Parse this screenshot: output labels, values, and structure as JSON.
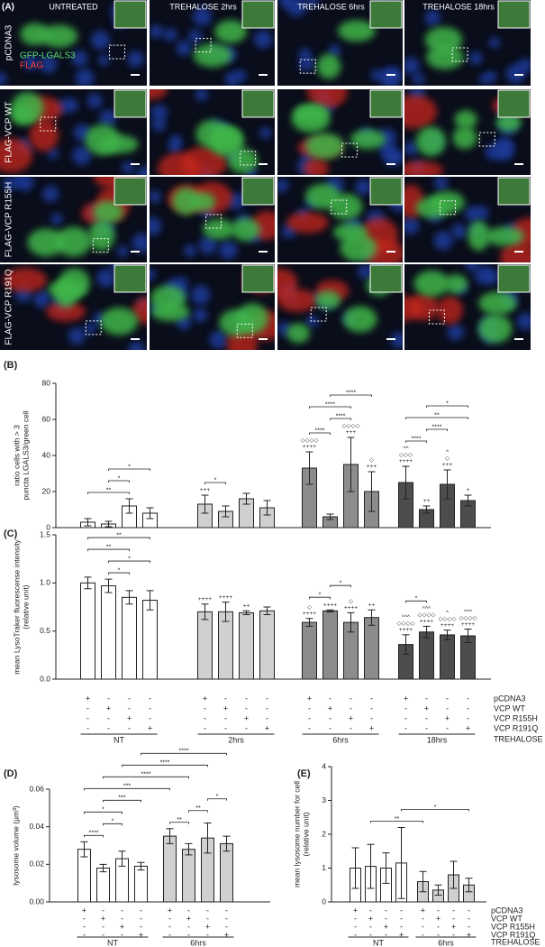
{
  "panel_a": {
    "label": "(A)",
    "columns": [
      "UNTREATED",
      "TREHALOSE 2hrs",
      "TREHALOSE 6hrs",
      "TREHALOSE 18hrs"
    ],
    "rows": [
      "pCDNA3",
      "FLAG-VCP WT",
      "FLAG-VCP R155H",
      "FLAG-VCP R191Q"
    ],
    "stain_labels": [
      "GFP-LGALS3",
      "FLAG"
    ]
  },
  "chart_data": [
    {
      "type": "bar",
      "panel": "(B)",
      "ylabel": [
        "ratio cells with > 3",
        "puncta LGALS3/green cell"
      ],
      "ylim": [
        0,
        80
      ],
      "yticks": [
        0,
        20,
        40,
        60,
        80
      ],
      "group_colors": [
        "#ffffff",
        "#d0d0d0",
        "#8c8c8c",
        "#4d4d4d"
      ],
      "series": [
        {
          "values": [
            3,
            13,
            33,
            25
          ],
          "errors": [
            2,
            5,
            9,
            9
          ]
        },
        {
          "values": [
            2,
            9,
            6,
            10
          ],
          "errors": [
            1.5,
            3,
            1.5,
            2
          ]
        },
        {
          "values": [
            12,
            16,
            35,
            24
          ],
          "errors": [
            4,
            3,
            15,
            8
          ]
        },
        {
          "values": [
            8,
            11,
            20,
            15
          ],
          "errors": [
            3,
            4,
            11,
            3
          ]
        }
      ],
      "annotations": [
        {
          "bar": 4,
          "lines": [
            "+++"
          ]
        },
        {
          "bar": 8,
          "lines": [
            "◇◇◇◇",
            "++++"
          ]
        },
        {
          "bar": 10,
          "lines": [
            "◇◇◇◇",
            "+++"
          ]
        },
        {
          "bar": 11,
          "lines": [
            "◇",
            "+++"
          ]
        },
        {
          "bar": 12,
          "lines": [
            "^^",
            "◇◇◇",
            "++++"
          ]
        },
        {
          "bar": 13,
          "lines": [
            "++"
          ]
        },
        {
          "bar": 14,
          "lines": [
            "^",
            "◇",
            "+++"
          ]
        },
        {
          "bar": 15,
          "lines": [
            "+"
          ]
        }
      ],
      "brackets": [
        {
          "bars": [
            0,
            2
          ],
          "label": "**"
        },
        {
          "bars": [
            1,
            2
          ],
          "label": "*"
        },
        {
          "bars": [
            1,
            3
          ],
          "label": "*"
        },
        {
          "bars": [
            4,
            5
          ],
          "label": "*"
        },
        {
          "bars": [
            8,
            9
          ],
          "label": "****"
        },
        {
          "bars": [
            9,
            10
          ],
          "label": "****"
        },
        {
          "bars": [
            8,
            10
          ],
          "label": "****"
        },
        {
          "bars": [
            9,
            11
          ],
          "label": "****"
        },
        {
          "bars": [
            12,
            13
          ],
          "label": "****"
        },
        {
          "bars": [
            13,
            14
          ],
          "label": "****"
        },
        {
          "bars": [
            12,
            15
          ],
          "label": "**"
        },
        {
          "bars": [
            13,
            15
          ],
          "label": "*"
        }
      ]
    },
    {
      "type": "bar",
      "panel": "(C)",
      "ylabel": [
        "mean LysoTraker fluorescense intensity",
        "(relative unit)"
      ],
      "ylim": [
        0,
        1.5
      ],
      "yticks": [
        {
          "value": 0,
          "label": "0.0"
        },
        0.5,
        {
          "value": 1,
          "label": "1.0"
        },
        1.5
      ],
      "group_colors": [
        "#ffffff",
        "#d0d0d0",
        "#8c8c8c",
        "#4d4d4d"
      ],
      "categories": [
        "NT",
        "2hrs",
        "6hrs",
        "18hrs"
      ],
      "series": [
        {
          "name": "pCDNA3",
          "values": [
            1.0,
            0.7,
            0.59,
            0.36
          ],
          "errors": [
            0.06,
            0.08,
            0.04,
            0.1
          ]
        },
        {
          "name": "VCP WT",
          "values": [
            0.97,
            0.7,
            0.71,
            0.49
          ],
          "errors": [
            0.07,
            0.1,
            0.01,
            0.06
          ]
        },
        {
          "name": "VCP R155H",
          "values": [
            0.85,
            0.69,
            0.59,
            0.46
          ],
          "errors": [
            0.07,
            0.02,
            0.1,
            0.05
          ]
        },
        {
          "name": "VCP R191Q",
          "values": [
            0.82,
            0.71,
            0.64,
            0.45
          ],
          "errors": [
            0.1,
            0.04,
            0.08,
            0.07
          ]
        }
      ],
      "annotations": [
        {
          "bar": 4,
          "lines": [
            "++++"
          ]
        },
        {
          "bar": 5,
          "lines": [
            "++++"
          ]
        },
        {
          "bar": 6,
          "lines": [
            "++"
          ]
        },
        {
          "bar": 8,
          "lines": [
            "◇",
            "++++"
          ]
        },
        {
          "bar": 9,
          "lines": [
            "++++"
          ]
        },
        {
          "bar": 10,
          "lines": [
            "◇",
            "++++"
          ]
        },
        {
          "bar": 11,
          "lines": [
            "++"
          ]
        },
        {
          "bar": 12,
          "lines": [
            "^^^",
            "◇◇◇◇",
            "++++"
          ]
        },
        {
          "bar": 13,
          "lines": [
            "^^^",
            "◇◇◇◇",
            "++++"
          ]
        },
        {
          "bar": 14,
          "lines": [
            "^",
            "◇◇◇◇",
            "++++"
          ]
        },
        {
          "bar": 15,
          "lines": [
            "^^^",
            "◇◇◇◇",
            "++++"
          ]
        }
      ],
      "brackets": [
        {
          "bars": [
            1,
            2
          ],
          "label": "*"
        },
        {
          "bars": [
            1,
            3
          ],
          "label": "*"
        },
        {
          "bars": [
            0,
            2
          ],
          "label": "**"
        },
        {
          "bars": [
            0,
            3
          ],
          "label": "**"
        },
        {
          "bars": [
            8,
            9
          ],
          "label": "*"
        },
        {
          "bars": [
            9,
            10
          ],
          "label": "*"
        },
        {
          "bars": [
            12,
            13
          ],
          "label": "*"
        }
      ],
      "matrix": {
        "plus": "+",
        "minus": "-",
        "treatment_label": "TREHALOSE"
      }
    },
    {
      "type": "bar",
      "panel": "(D)",
      "ylabel": [
        "lysosome volume (µm³)"
      ],
      "ylim": [
        0,
        0.06
      ],
      "yticks": [
        {
          "value": 0,
          "label": "0.00"
        },
        0.02,
        0.04,
        0.06
      ],
      "group_colors": [
        "#ffffff",
        "#d0d0d0"
      ],
      "categories": [
        "NT",
        "6hrs"
      ],
      "series": [
        {
          "values": [
            0.028,
            0.035
          ],
          "errors": [
            0.004,
            0.004
          ]
        },
        {
          "values": [
            0.018,
            0.028
          ],
          "errors": [
            0.002,
            0.003
          ]
        },
        {
          "values": [
            0.023,
            0.034
          ],
          "errors": [
            0.004,
            0.008
          ]
        },
        {
          "values": [
            0.019,
            0.031
          ],
          "errors": [
            0.002,
            0.004
          ]
        }
      ],
      "brackets": [
        {
          "bars": [
            0,
            1
          ],
          "label": "****"
        },
        {
          "bars": [
            1,
            2
          ],
          "label": "*"
        },
        {
          "bars": [
            4,
            5
          ],
          "label": "**"
        },
        {
          "bars": [
            5,
            6
          ],
          "label": "**"
        },
        {
          "bars": [
            6,
            7
          ],
          "label": "*"
        },
        {
          "bars": [
            0,
            2
          ],
          "label": "*"
        },
        {
          "bars": [
            1,
            3
          ],
          "label": "***"
        },
        {
          "bars": [
            0,
            4
          ],
          "label": "***"
        },
        {
          "bars": [
            1,
            5
          ],
          "label": "****"
        },
        {
          "bars": [
            2,
            6
          ],
          "label": "****"
        },
        {
          "bars": [
            3,
            7
          ],
          "label": "****"
        }
      ],
      "matrix": {
        "plus": "+",
        "minus": "-"
      }
    },
    {
      "type": "bar",
      "panel": "(E)",
      "ylabel": [
        "mean lysosome number for cell",
        "(relative unit)"
      ],
      "ylim": [
        0,
        4
      ],
      "yticks": [
        0,
        1,
        2,
        3,
        4
      ],
      "group_colors": [
        "#ffffff",
        "#d0d0d0"
      ],
      "categories": [
        "NT",
        "6hrs"
      ],
      "series": [
        {
          "name": "pCDNA3",
          "values": [
            1.0,
            0.6
          ],
          "errors": [
            0.6,
            0.3
          ]
        },
        {
          "name": "VCP WT",
          "values": [
            1.05,
            0.35
          ],
          "errors": [
            0.65,
            0.15
          ]
        },
        {
          "name": "VCP R155H",
          "values": [
            1.0,
            0.8
          ],
          "errors": [
            0.45,
            0.4
          ]
        },
        {
          "name": "VCP R191Q",
          "values": [
            1.15,
            0.5
          ],
          "errors": [
            1.05,
            0.2
          ]
        }
      ],
      "brackets": [
        {
          "bars": [
            1,
            4
          ],
          "label": "**"
        },
        {
          "bars": [
            3,
            7
          ],
          "label": "*"
        }
      ],
      "matrix": {
        "plus": "+",
        "minus": "-",
        "treatment_label": "TREHALOSE"
      }
    }
  ]
}
